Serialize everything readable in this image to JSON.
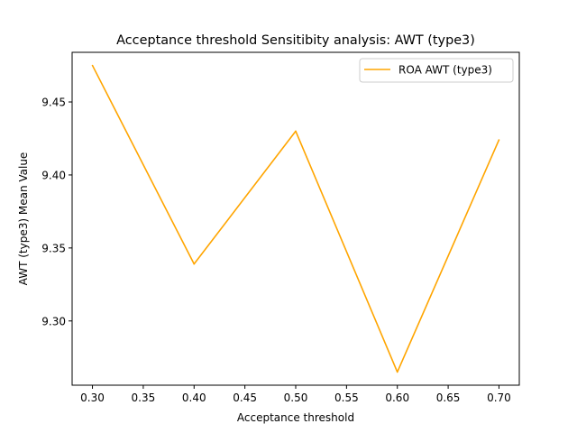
{
  "chart_data": {
    "type": "line",
    "title": "Acceptance threshold Sensitibity analysis: AWT (type3)",
    "xlabel": "Acceptance threshold",
    "ylabel": "AWT (type3) Mean Value",
    "xlim": [
      0.28,
      0.72
    ],
    "ylim": [
      9.256,
      9.484
    ],
    "x_ticks": [
      "0.30",
      "0.35",
      "0.40",
      "0.45",
      "0.50",
      "0.55",
      "0.60",
      "0.65",
      "0.70"
    ],
    "y_ticks": [
      "9.30",
      "9.35",
      "9.40",
      "9.45"
    ],
    "grid": false,
    "legend": "upper right",
    "series": [
      {
        "name": "ROA AWT (type3)",
        "color": "#FFA500",
        "x": [
          0.3,
          0.4,
          0.5,
          0.6,
          0.7
        ],
        "y": [
          9.475,
          9.339,
          9.43,
          9.265,
          9.424
        ]
      }
    ]
  }
}
